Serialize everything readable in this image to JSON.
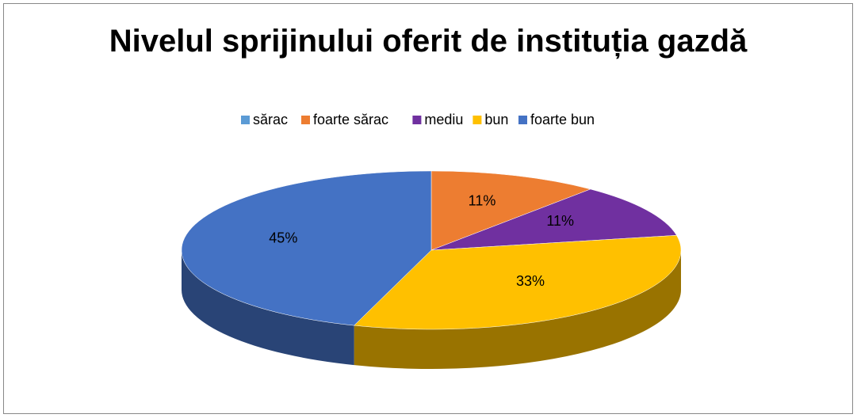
{
  "chart_data": {
    "type": "pie",
    "title": "Nivelul sprijinului oferit de instituția gazdă",
    "categories": [
      "sărac",
      "foarte sărac",
      "mediu",
      "bun",
      "foarte bun"
    ],
    "values": [
      0,
      11,
      11,
      33,
      45
    ],
    "value_labels": [
      null,
      "11%",
      "11%",
      "33%",
      "45%"
    ],
    "colors": [
      "#5b9bd5",
      "#ed7d31",
      "#7030a0",
      "#ffc000",
      "#4472c4"
    ],
    "legend": "top"
  }
}
